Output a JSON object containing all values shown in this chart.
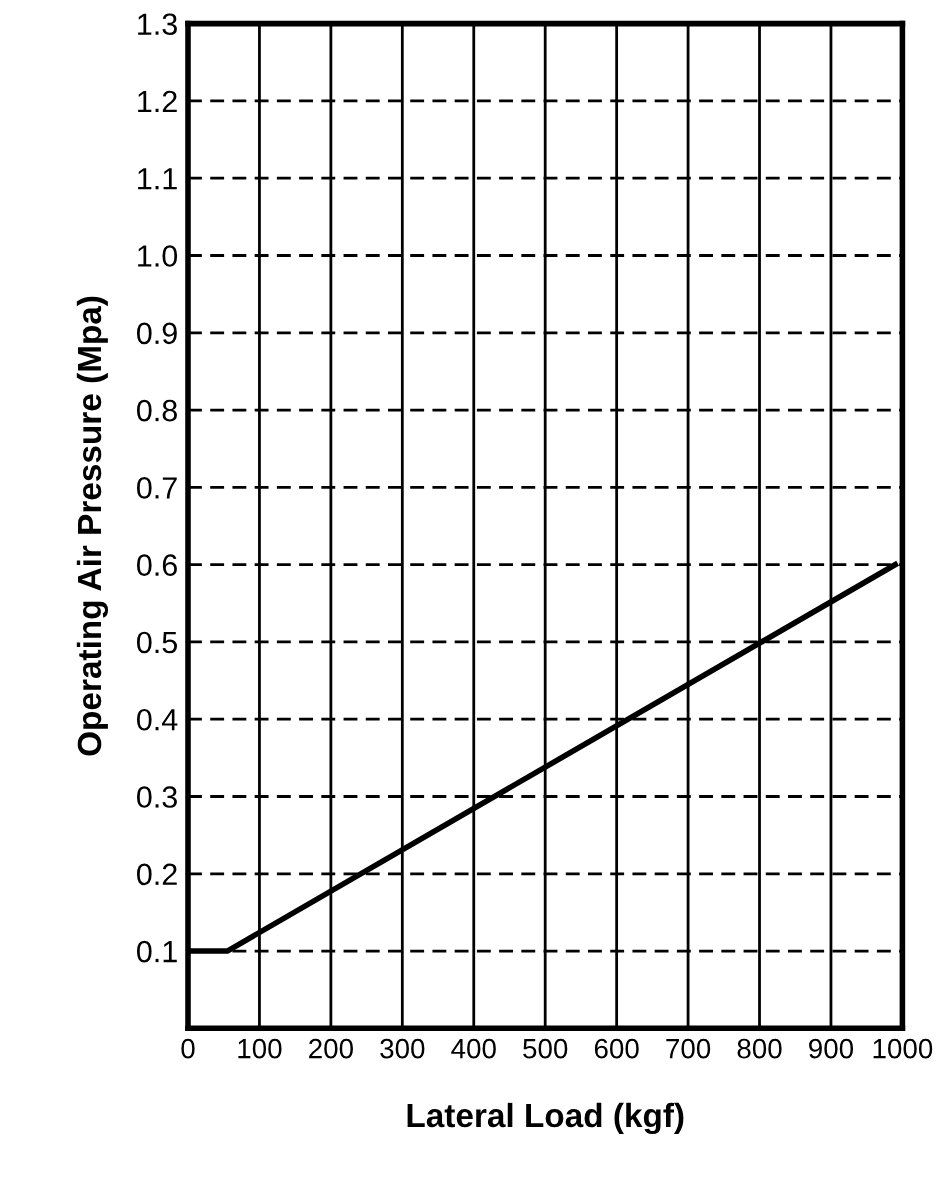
{
  "chart_data": {
    "type": "line",
    "xlabel": "Lateral Load (kgf)",
    "ylabel": "Operating Air Pressure (Mpa)",
    "x": [
      0,
      55,
      990
    ],
    "series": [
      {
        "color": "#000000",
        "values": [
          0.1,
          0.1,
          0.6
        ]
      }
    ],
    "xlim": [
      0,
      1000
    ],
    "xticks": [
      0,
      100,
      200,
      300,
      400,
      500,
      600,
      700,
      800,
      900,
      1000
    ],
    "ylim": [
      0,
      1.3
    ],
    "yticks": [
      0.1,
      0.2,
      0.3,
      0.4,
      0.5,
      0.6,
      0.7,
      0.8,
      0.9,
      {
        "value": 1.0,
        "label": "1.0"
      },
      1.1,
      1.2,
      1.3
    ],
    "grid": true,
    "marker": "none",
    "line_style": "solid"
  }
}
